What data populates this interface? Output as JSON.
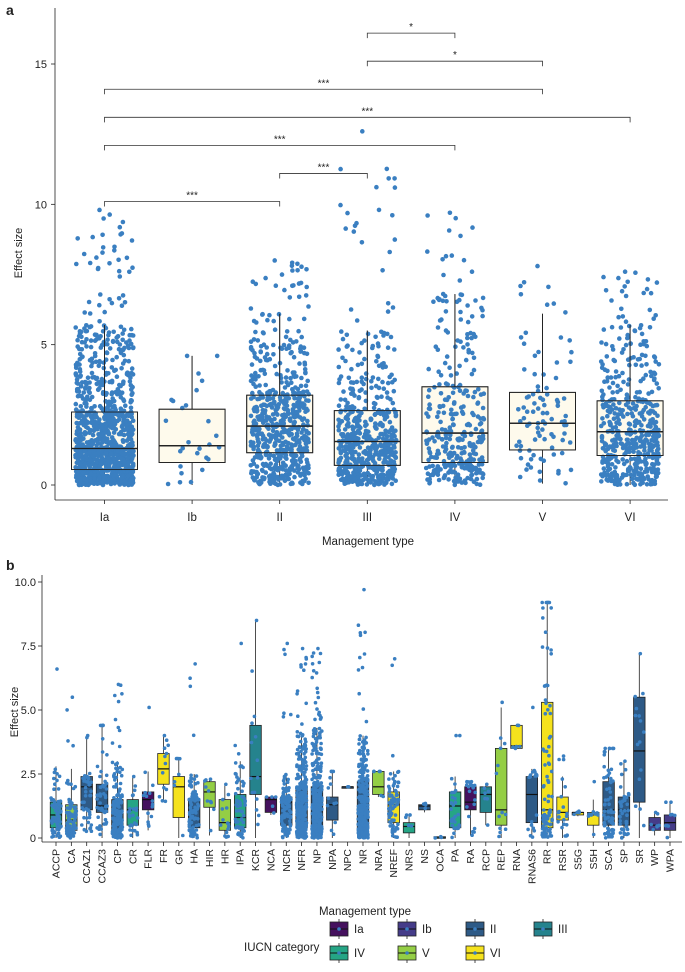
{
  "panel_a": {
    "label": "a",
    "xlabel": "Management type",
    "ylabel": "Effect size",
    "ylim": [
      0,
      16.5
    ],
    "yticks": [
      "0",
      "5",
      "10",
      "15"
    ],
    "categories": [
      "Ia",
      "Ib",
      "II",
      "III",
      "IV",
      "V",
      "VI"
    ],
    "box_color": "#fdf6dc",
    "point_color": "#3a7fc1",
    "significance": [
      {
        "from": "Ia",
        "to": "II",
        "y": 10.1,
        "stars": "***"
      },
      {
        "from": "II",
        "to": "III",
        "y": 11.1,
        "stars": "***"
      },
      {
        "from": "Ia",
        "to": "IV",
        "y": 12.1,
        "stars": "***"
      },
      {
        "from": "Ia",
        "to": "VI",
        "y": 13.1,
        "stars": "***"
      },
      {
        "from": "Ia",
        "to": "V",
        "y": 14.1,
        "stars": "***"
      },
      {
        "from": "III",
        "to": "V",
        "y": 15.1,
        "stars": "*"
      },
      {
        "from": "III",
        "to": "IV",
        "y": 16.1,
        "stars": "*"
      }
    ]
  },
  "panel_b": {
    "label": "b",
    "xlabel": "Management type",
    "ylabel": "Effect size",
    "ylim": [
      0,
      10.3
    ],
    "yticks": [
      "0",
      "2.5",
      "5.0",
      "7.5",
      "10.0"
    ],
    "legend": {
      "title": "IUCN category",
      "items": [
        {
          "label": "Ia",
          "color": "#45115e"
        },
        {
          "label": "Ib",
          "color": "#453c89"
        },
        {
          "label": "II",
          "color": "#2e5a86"
        },
        {
          "label": "III",
          "color": "#25838d"
        },
        {
          "label": "IV",
          "color": "#25a585"
        },
        {
          "label": "V",
          "color": "#94ce45"
        },
        {
          "label": "VI",
          "color": "#f5e21d"
        }
      ]
    }
  },
  "chart_data": [
    {
      "type": "box",
      "panel": "a",
      "title": "",
      "xlabel": "Management type",
      "ylabel": "Effect size",
      "ylim": [
        0,
        16.5
      ],
      "categories": [
        "Ia",
        "Ib",
        "II",
        "III",
        "IV",
        "V",
        "VI"
      ],
      "series": [
        {
          "name": "Ia",
          "q1": 0.55,
          "median": 1.3,
          "q3": 2.6,
          "whisker_low": 0,
          "whisker_high": 5.7,
          "max": 9.8,
          "n_points": 1100
        },
        {
          "name": "Ib",
          "q1": 0.8,
          "median": 1.4,
          "q3": 2.7,
          "whisker_low": 0,
          "whisker_high": 4.6,
          "max": 4.6,
          "n_points": 26
        },
        {
          "name": "II",
          "q1": 1.15,
          "median": 2.1,
          "q3": 3.2,
          "whisker_low": 0,
          "whisker_high": 6.1,
          "max": 8.0,
          "n_points": 620
        },
        {
          "name": "III",
          "q1": 0.7,
          "median": 1.55,
          "q3": 2.65,
          "whisker_low": 0,
          "whisker_high": 5.5,
          "max": 12.6,
          "n_points": 560
        },
        {
          "name": "IV",
          "q1": 0.8,
          "median": 1.85,
          "q3": 3.5,
          "whisker_low": 0,
          "whisker_high": 6.8,
          "max": 9.7,
          "n_points": 330
        },
        {
          "name": "V",
          "q1": 1.25,
          "median": 2.2,
          "q3": 3.3,
          "whisker_low": 0.05,
          "whisker_high": 6.1,
          "max": 7.8,
          "n_points": 90
        },
        {
          "name": "VI",
          "q1": 1.05,
          "median": 1.9,
          "q3": 3.0,
          "whisker_low": 0,
          "whisker_high": 5.7,
          "max": 7.6,
          "n_points": 480
        }
      ]
    },
    {
      "type": "box",
      "panel": "b",
      "title": "",
      "xlabel": "Management type",
      "ylabel": "Effect size",
      "ylim": [
        0,
        10.3
      ],
      "categories": [
        "ACCP",
        "CA",
        "CCAZ1",
        "CCAZ3",
        "CP",
        "CR",
        "FLR",
        "FR",
        "GR",
        "HA",
        "HIR",
        "HR",
        "IPA",
        "KCR",
        "NCA",
        "NCR",
        "NFR",
        "NP",
        "NPA",
        "NPC",
        "NR",
        "NRA",
        "NREF",
        "NRS",
        "NS",
        "OCA",
        "PA",
        "RA",
        "RCP",
        "REP",
        "RNA",
        "RNAS6",
        "RR",
        "RSR",
        "S5G",
        "S5H",
        "SCA",
        "SP",
        "SR",
        "WP",
        "WPA"
      ],
      "series": [
        {
          "name": "ACCP",
          "category": "IV",
          "q1": 0.4,
          "median": 0.9,
          "q3": 1.4,
          "whisker_low": 0,
          "whisker_high": 2.8,
          "max": 6.6,
          "n_points": 70
        },
        {
          "name": "CA",
          "category": "V",
          "q1": 0.3,
          "median": 0.7,
          "q3": 1.3,
          "whisker_low": 0,
          "whisker_high": 2.7,
          "max": 5.5,
          "n_points": 90
        },
        {
          "name": "CCAZ1",
          "category": "II",
          "q1": 1.1,
          "median": 2.0,
          "q3": 2.4,
          "whisker_low": 0.2,
          "whisker_high": 4.0,
          "max": 4.0,
          "n_points": 40
        },
        {
          "name": "CCAZ3",
          "category": "II",
          "q1": 1.0,
          "median": 1.25,
          "q3": 2.1,
          "whisker_low": 0,
          "whisker_high": 4.4,
          "max": 4.4,
          "n_points": 50
        },
        {
          "name": "CP",
          "category": "II",
          "q1": 0.3,
          "median": 1.0,
          "q3": 1.5,
          "whisker_low": 0,
          "whisker_high": 3.0,
          "max": 6.0,
          "n_points": 160
        },
        {
          "name": "CR",
          "category": "IV",
          "q1": 0.5,
          "median": 1.1,
          "q3": 1.5,
          "whisker_low": 0,
          "whisker_high": 2.4,
          "max": 2.4,
          "n_points": 25
        },
        {
          "name": "FLR",
          "category": "Ia",
          "q1": 1.1,
          "median": 1.5,
          "q3": 1.8,
          "whisker_low": 0.3,
          "whisker_high": 2.6,
          "max": 5.1,
          "n_points": 14
        },
        {
          "name": "FR",
          "category": "VI",
          "q1": 2.1,
          "median": 2.7,
          "q3": 3.3,
          "whisker_low": 1.4,
          "whisker_high": 4.0,
          "max": 4.0,
          "n_points": 12
        },
        {
          "name": "GR",
          "category": "VI",
          "q1": 0.8,
          "median": 2.0,
          "q3": 2.4,
          "whisker_low": 0,
          "whisker_high": 3.1,
          "max": 3.1,
          "n_points": 6
        },
        {
          "name": "HA",
          "category": "II",
          "q1": 0.4,
          "median": 1.5,
          "q3": 1.5,
          "whisker_low": 0,
          "whisker_high": 2.5,
          "max": 6.8,
          "n_points": 110
        },
        {
          "name": "HIR",
          "category": "V",
          "q1": 1.2,
          "median": 1.8,
          "q3": 2.2,
          "whisker_low": 0.1,
          "whisker_high": 2.3,
          "max": 2.3,
          "n_points": 9
        },
        {
          "name": "HR",
          "category": "V",
          "q1": 0.3,
          "median": 0.6,
          "q3": 1.5,
          "whisker_low": 0,
          "whisker_high": 2.1,
          "max": 2.1,
          "n_points": 14
        },
        {
          "name": "IPA",
          "category": "IV",
          "q1": 0.4,
          "median": 0.8,
          "q3": 1.7,
          "whisker_low": 0,
          "whisker_high": 3.0,
          "max": 7.6,
          "n_points": 60
        },
        {
          "name": "KCR",
          "category": "III",
          "q1": 1.7,
          "median": 2.4,
          "q3": 4.4,
          "whisker_low": 0,
          "whisker_high": 8.5,
          "max": 8.5,
          "n_points": 14
        },
        {
          "name": "NCA",
          "category": "Ia",
          "q1": 1.0,
          "median": 1.5,
          "q3": 1.6,
          "whisker_low": 0.9,
          "whisker_high": 1.6,
          "max": 1.6,
          "n_points": 4
        },
        {
          "name": "NCR",
          "category": "II",
          "q1": 0.5,
          "median": 1.4,
          "q3": 1.6,
          "whisker_low": 0,
          "whisker_high": 2.5,
          "max": 7.6,
          "n_points": 130
        },
        {
          "name": "NFR",
          "category": "II",
          "q1": 0.4,
          "median": 1.2,
          "q3": 2.0,
          "whisker_low": 0,
          "whisker_high": 4.0,
          "max": 7.4,
          "n_points": 320
        },
        {
          "name": "NP",
          "category": "II",
          "q1": 0.4,
          "median": 1.2,
          "q3": 2.0,
          "whisker_low": 0,
          "whisker_high": 4.3,
          "max": 7.4,
          "n_points": 340
        },
        {
          "name": "NPA",
          "category": "II",
          "q1": 0.7,
          "median": 1.3,
          "q3": 1.6,
          "whisker_low": 0,
          "whisker_high": 2.6,
          "max": 2.6,
          "n_points": 12
        },
        {
          "name": "NPC",
          "category": "II",
          "q1": 2.0,
          "median": 2.0,
          "q3": 2.0,
          "whisker_low": 2.0,
          "whisker_high": 2.0,
          "max": 2.0,
          "n_points": 1
        },
        {
          "name": "NR",
          "category": "II",
          "q1": 0.4,
          "median": 1.25,
          "q3": 2.2,
          "whisker_low": 0,
          "whisker_high": 4.0,
          "max": 9.7,
          "n_points": 330
        },
        {
          "name": "NRA",
          "category": "V",
          "q1": 1.7,
          "median": 2.0,
          "q3": 2.6,
          "whisker_low": 1.6,
          "whisker_high": 2.6,
          "max": 2.6,
          "n_points": 5
        },
        {
          "name": "NREF",
          "category": "VI",
          "q1": 0.6,
          "median": 1.3,
          "q3": 1.8,
          "whisker_low": 0,
          "whisker_high": 2.6,
          "max": 7.0,
          "n_points": 80
        },
        {
          "name": "NRS",
          "category": "IV",
          "q1": 0.2,
          "median": 0.45,
          "q3": 0.6,
          "whisker_low": 0,
          "whisker_high": 0.9,
          "max": 0.9,
          "n_points": 4
        },
        {
          "name": "NS",
          "category": "II",
          "q1": 1.1,
          "median": 1.25,
          "q3": 1.3,
          "whisker_low": 1.0,
          "whisker_high": 1.35,
          "max": 1.35,
          "n_points": 3
        },
        {
          "name": "OCA",
          "category": "III",
          "q1": 0.0,
          "median": 0.0,
          "q3": 0.05,
          "whisker_low": 0,
          "whisker_high": 0.05,
          "max": 0.05,
          "n_points": 2
        },
        {
          "name": "PA",
          "category": "IV",
          "q1": 0.4,
          "median": 1.25,
          "q3": 1.8,
          "whisker_low": 0,
          "whisker_high": 2.4,
          "max": 4.0,
          "n_points": 30
        },
        {
          "name": "RA",
          "category": "Ia",
          "q1": 1.1,
          "median": 1.4,
          "q3": 2.0,
          "whisker_low": 0.1,
          "whisker_high": 2.2,
          "max": 2.2,
          "n_points": 20
        },
        {
          "name": "RCP",
          "category": "III",
          "q1": 1.0,
          "median": 1.7,
          "q3": 2.0,
          "whisker_low": 0.5,
          "whisker_high": 2.1,
          "max": 2.1,
          "n_points": 6
        },
        {
          "name": "REP",
          "category": "V",
          "q1": 0.5,
          "median": 1.1,
          "q3": 3.5,
          "whisker_low": 0,
          "whisker_high": 5.1,
          "max": 5.3,
          "n_points": 12
        },
        {
          "name": "RNA",
          "category": "VI",
          "q1": 3.5,
          "median": 3.6,
          "q3": 4.4,
          "whisker_low": 3.5,
          "whisker_high": 4.4,
          "max": 4.4,
          "n_points": 5
        },
        {
          "name": "RNAS6",
          "category": "II",
          "q1": 0.6,
          "median": 1.7,
          "q3": 2.4,
          "whisker_low": 0,
          "whisker_high": 2.7,
          "max": 5.1,
          "n_points": 20
        },
        {
          "name": "RR",
          "category": "VI",
          "q1": 0.4,
          "median": 1.1,
          "q3": 5.3,
          "whisker_low": 0,
          "whisker_high": 9.2,
          "max": 9.2,
          "n_points": 90
        },
        {
          "name": "RSR",
          "category": "VI",
          "q1": 0.7,
          "median": 1.0,
          "q3": 1.6,
          "whisker_low": 0,
          "whisker_high": 2.4,
          "max": 3.2,
          "n_points": 20
        },
        {
          "name": "S5G",
          "category": "VI",
          "q1": 0.9,
          "median": 1.0,
          "q3": 1.0,
          "whisker_low": 0.85,
          "whisker_high": 1.05,
          "max": 1.05,
          "n_points": 3
        },
        {
          "name": "S5H",
          "category": "VI",
          "q1": 0.5,
          "median": 0.9,
          "q3": 1.0,
          "whisker_low": 0,
          "whisker_high": 1.5,
          "max": 2.2,
          "n_points": 10
        },
        {
          "name": "SCA",
          "category": "II",
          "q1": 0.5,
          "median": 1.1,
          "q3": 2.2,
          "whisker_low": 0,
          "whisker_high": 3.5,
          "max": 3.5,
          "n_points": 70
        },
        {
          "name": "SP",
          "category": "II",
          "q1": 0.5,
          "median": 1.1,
          "q3": 1.6,
          "whisker_low": 0,
          "whisker_high": 3.0,
          "max": 3.0,
          "n_points": 40
        },
        {
          "name": "SR",
          "category": "II",
          "q1": 1.4,
          "median": 3.4,
          "q3": 5.5,
          "whisker_low": 0,
          "whisker_high": 7.2,
          "max": 7.2,
          "n_points": 14
        },
        {
          "name": "WP",
          "category": "Ib",
          "q1": 0.3,
          "median": 0.5,
          "q3": 0.8,
          "whisker_low": 0.1,
          "whisker_high": 1.0,
          "max": 1.0,
          "n_points": 6
        },
        {
          "name": "WPA",
          "category": "Ib",
          "q1": 0.3,
          "median": 0.6,
          "q3": 0.9,
          "whisker_low": 0,
          "whisker_high": 1.4,
          "max": 1.4,
          "n_points": 8
        }
      ]
    }
  ]
}
